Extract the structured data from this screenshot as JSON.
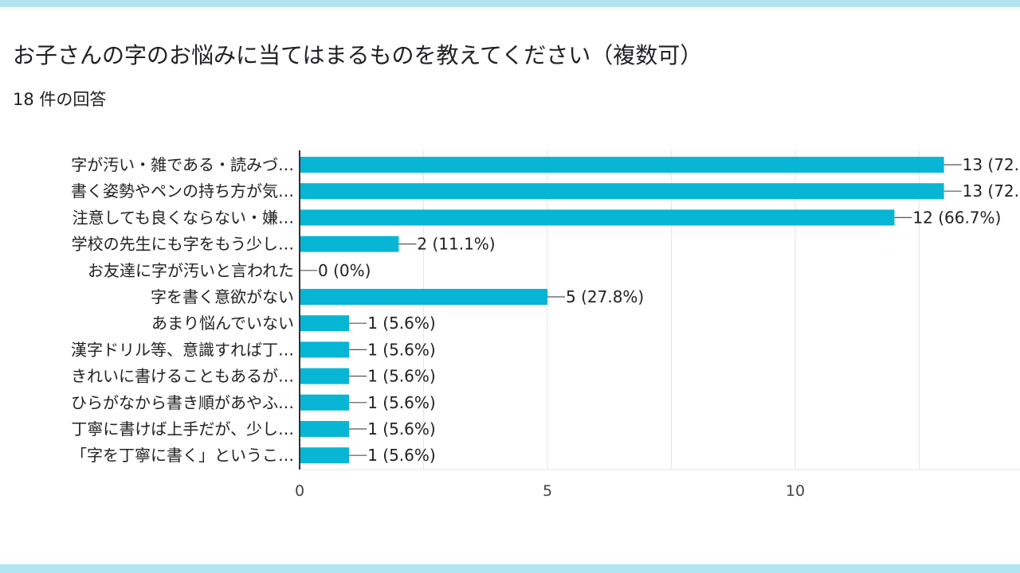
{
  "header": {
    "title": "お子さんの字のお悩みに当てはまるものを教えてください（複数可）",
    "response_count": "18 件の回答"
  },
  "colors": {
    "bar": "#06b6d4",
    "grid": "#e6e6e6",
    "axis": "#333333",
    "accent_band": "#b3e5f0"
  },
  "chart_data": {
    "type": "bar",
    "orientation": "horizontal",
    "categories": [
      "字が汚い・雑である・読みづ…",
      "書く姿勢やペンの持ち方が気…",
      "注意しても良くならない・嫌…",
      "学校の先生にも字をもう少し…",
      "お友達に字が汚いと言われた",
      "字を書く意欲がない",
      "あまり悩んでいない",
      "漢字ドリル等、意識すれば丁…",
      "きれいに書けることもあるが…",
      "ひらがなから書き順があやふ…",
      "丁寧に書けば上手だが、少し…",
      "「字を丁寧に書く」というこ…"
    ],
    "values": [
      13,
      13,
      12,
      2,
      0,
      5,
      1,
      1,
      1,
      1,
      1,
      1
    ],
    "data_labels": [
      "13 (72.",
      "13 (72.",
      "12 (66.7%)",
      "2 (11.1%)",
      "0 (0%)",
      "5 (27.8%)",
      "1 (5.6%)",
      "1 (5.6%)",
      "1 (5.6%)",
      "1 (5.6%)",
      "1 (5.6%)",
      "1 (5.6%)"
    ],
    "x_ticks": [
      "0",
      "5",
      "10"
    ],
    "xlim": [
      0,
      14.5
    ],
    "grid": true,
    "legend": "none"
  }
}
